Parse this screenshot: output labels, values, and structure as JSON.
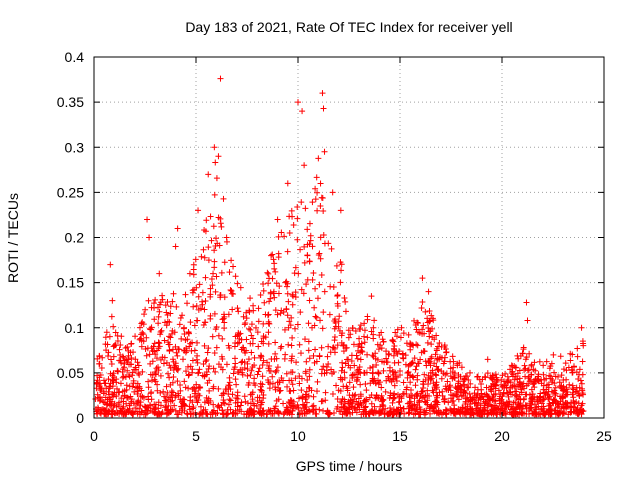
{
  "chart_data": {
    "type": "scatter",
    "title": "Day 183 of 2021, Rate Of TEC Index for receiver yell",
    "xlabel": "GPS time / hours",
    "ylabel": "ROTI / TECUs",
    "xlim": [
      0,
      25
    ],
    "ylim": [
      0,
      0.4
    ],
    "x_ticks": [
      0,
      5,
      10,
      15,
      20,
      25
    ],
    "x_tick_labels": [
      "0",
      "5",
      "10",
      "15",
      "20",
      "25"
    ],
    "y_ticks": [
      0,
      0.05,
      0.1,
      0.15,
      0.2,
      0.25,
      0.3,
      0.35,
      0.4
    ],
    "y_tick_labels": [
      "0",
      "0.05",
      "0.1",
      "0.15",
      "0.2",
      "0.25",
      "0.3",
      "0.35",
      "0.4"
    ],
    "grid": true,
    "marker": "+",
    "color": "#ff0000",
    "series": [
      {
        "name": "ROTI",
        "envelope": {
          "x": [
            0,
            0.5,
            1,
            1.5,
            2,
            2.5,
            3,
            3.5,
            4,
            4.5,
            5,
            5.5,
            6,
            6.5,
            7,
            7.5,
            8,
            8.5,
            9,
            9.5,
            10,
            10.5,
            11,
            11.5,
            12,
            12.5,
            13,
            13.5,
            14,
            14.5,
            15,
            15.5,
            16,
            16.5,
            17,
            17.5,
            18,
            18.5,
            19,
            19.5,
            20,
            20.5,
            21,
            21.5,
            22,
            22.5,
            23,
            23.5,
            24
          ],
          "y": [
            0.06,
            0.09,
            0.12,
            0.08,
            0.09,
            0.12,
            0.15,
            0.13,
            0.14,
            0.16,
            0.18,
            0.22,
            0.3,
            0.22,
            0.15,
            0.14,
            0.12,
            0.17,
            0.2,
            0.22,
            0.25,
            0.24,
            0.29,
            0.23,
            0.2,
            0.1,
            0.1,
            0.12,
            0.1,
            0.08,
            0.11,
            0.09,
            0.15,
            0.12,
            0.09,
            0.07,
            0.06,
            0.05,
            0.05,
            0.05,
            0.05,
            0.06,
            0.08,
            0.07,
            0.06,
            0.07,
            0.07,
            0.08,
            0.09
          ]
        },
        "outliers": [
          {
            "x": 0.8,
            "y": 0.17
          },
          {
            "x": 0.9,
            "y": 0.13
          },
          {
            "x": 2.6,
            "y": 0.22
          },
          {
            "x": 2.7,
            "y": 0.2
          },
          {
            "x": 3.2,
            "y": 0.16
          },
          {
            "x": 4.1,
            "y": 0.21
          },
          {
            "x": 4.0,
            "y": 0.19
          },
          {
            "x": 5.1,
            "y": 0.23
          },
          {
            "x": 5.6,
            "y": 0.27
          },
          {
            "x": 5.9,
            "y": 0.3
          },
          {
            "x": 6.1,
            "y": 0.29
          },
          {
            "x": 6.2,
            "y": 0.376
          },
          {
            "x": 6.5,
            "y": 0.2
          },
          {
            "x": 9.0,
            "y": 0.22
          },
          {
            "x": 9.5,
            "y": 0.26
          },
          {
            "x": 10.0,
            "y": 0.35
          },
          {
            "x": 10.2,
            "y": 0.34
          },
          {
            "x": 10.3,
            "y": 0.28
          },
          {
            "x": 11.2,
            "y": 0.36
          },
          {
            "x": 11.25,
            "y": 0.343
          },
          {
            "x": 11.3,
            "y": 0.295
          },
          {
            "x": 11.7,
            "y": 0.25
          },
          {
            "x": 12.1,
            "y": 0.23
          },
          {
            "x": 13.6,
            "y": 0.135
          },
          {
            "x": 16.1,
            "y": 0.155
          },
          {
            "x": 16.4,
            "y": 0.14
          },
          {
            "x": 19.3,
            "y": 0.065
          },
          {
            "x": 21.2,
            "y": 0.128
          },
          {
            "x": 21.25,
            "y": 0.108
          },
          {
            "x": 23.9,
            "y": 0.1
          }
        ]
      }
    ]
  }
}
